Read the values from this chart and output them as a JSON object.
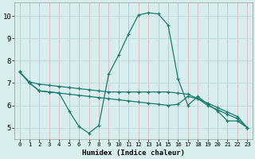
{
  "xlabel": "Humidex (Indice chaleur)",
  "bg_color": "#d8eeee",
  "grid_color": "#b8d8d8",
  "line_color": "#1a7a6e",
  "xlim": [
    -0.5,
    23.5
  ],
  "ylim": [
    4.5,
    10.6
  ],
  "yticks": [
    5,
    6,
    7,
    8,
    9,
    10
  ],
  "xticks": [
    0,
    1,
    2,
    3,
    4,
    5,
    6,
    7,
    8,
    9,
    10,
    11,
    12,
    13,
    14,
    15,
    16,
    17,
    18,
    19,
    20,
    21,
    22,
    23
  ],
  "series1_x": [
    0,
    1,
    2,
    3,
    4,
    5,
    6,
    7,
    8,
    9,
    10,
    11,
    12,
    13,
    14,
    15,
    16,
    17,
    18,
    19,
    20,
    21,
    22,
    23
  ],
  "series1_y": [
    7.5,
    7.0,
    6.65,
    6.6,
    6.55,
    5.75,
    5.05,
    4.75,
    5.1,
    7.4,
    8.25,
    9.2,
    10.05,
    10.15,
    10.1,
    9.6,
    7.2,
    6.0,
    6.4,
    6.05,
    5.75,
    5.3,
    5.3,
    5.0
  ],
  "series2_x": [
    0,
    1,
    2,
    3,
    4,
    5,
    6,
    7,
    8,
    9,
    10,
    11,
    12,
    13,
    14,
    15,
    16,
    17,
    18,
    19,
    20,
    21,
    22,
    23
  ],
  "series2_y": [
    7.5,
    7.0,
    6.65,
    6.6,
    6.55,
    6.5,
    6.45,
    6.4,
    6.35,
    6.3,
    6.25,
    6.2,
    6.15,
    6.1,
    6.05,
    6.0,
    6.05,
    6.4,
    6.3,
    6.1,
    5.9,
    5.7,
    5.5,
    5.0
  ],
  "series3_x": [
    0,
    1,
    2,
    3,
    4,
    5,
    6,
    7,
    8,
    9,
    10,
    11,
    12,
    13,
    14,
    15,
    16,
    17,
    18,
    19,
    20,
    21,
    22,
    23
  ],
  "series3_y": [
    7.5,
    7.05,
    6.95,
    6.9,
    6.85,
    6.8,
    6.75,
    6.7,
    6.65,
    6.6,
    6.6,
    6.6,
    6.6,
    6.6,
    6.6,
    6.6,
    6.55,
    6.5,
    6.3,
    6.0,
    5.8,
    5.6,
    5.4,
    5.0
  ],
  "xlabel_fontsize": 6.5,
  "tick_fontsize_x": 5.2,
  "tick_fontsize_y": 6.5
}
